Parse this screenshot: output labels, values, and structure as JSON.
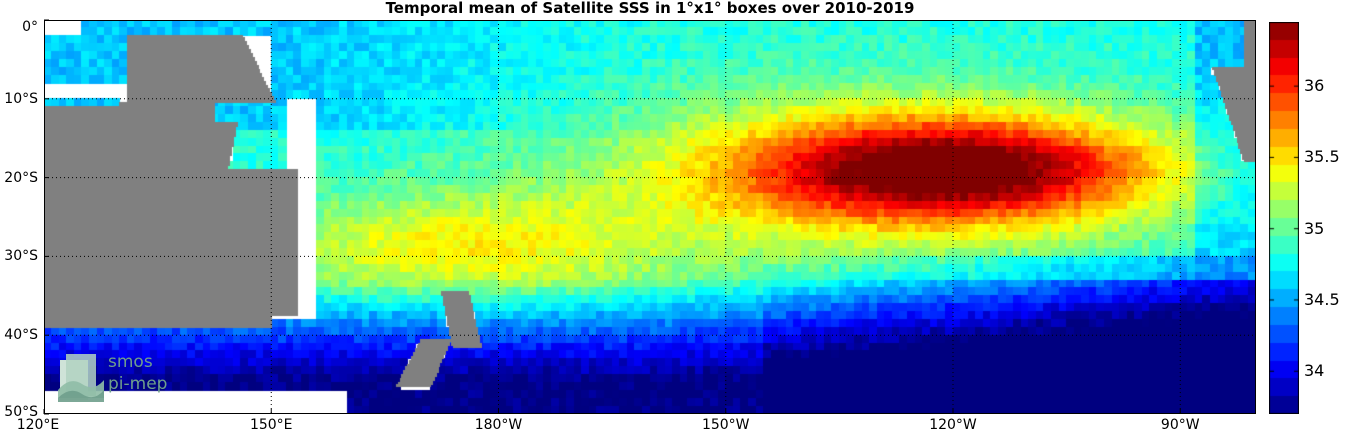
{
  "title": "Temporal mean of Satellite SSS in 1°x1° boxes over 2010-2019",
  "map": {
    "lon_range": [
      "120°E",
      "80°W"
    ],
    "lat_range": [
      "0°",
      "50°S"
    ],
    "grid": "dotted",
    "y_ticks": [
      {
        "label": "0°",
        "lat": 0
      },
      {
        "label": "10°S",
        "lat": -10
      },
      {
        "label": "20°S",
        "lat": -20
      },
      {
        "label": "30°S",
        "lat": -30
      },
      {
        "label": "40°S",
        "lat": -40
      },
      {
        "label": "50°S",
        "lat": -50
      }
    ],
    "x_ticks": [
      {
        "label": "120°E",
        "lon": 120
      },
      {
        "label": "150°E",
        "lon": 150
      },
      {
        "label": "180°W",
        "lon": 180
      },
      {
        "label": "150°W",
        "lon": 210
      },
      {
        "label": "120°W",
        "lon": 240
      },
      {
        "label": "90°W",
        "lon": 270
      }
    ],
    "land_color": "#808080"
  },
  "colorbar": {
    "min": 33.7,
    "max": 36.45,
    "ticks": [
      {
        "label": "34",
        "value": 34
      },
      {
        "label": "34.5",
        "value": 34.5
      },
      {
        "label": "35",
        "value": 35
      },
      {
        "label": "35.5",
        "value": 35.5
      },
      {
        "label": "36",
        "value": 36
      }
    ],
    "colormap": "jet"
  },
  "logo": {
    "line1": "smos",
    "line2": "pi-mep"
  }
}
